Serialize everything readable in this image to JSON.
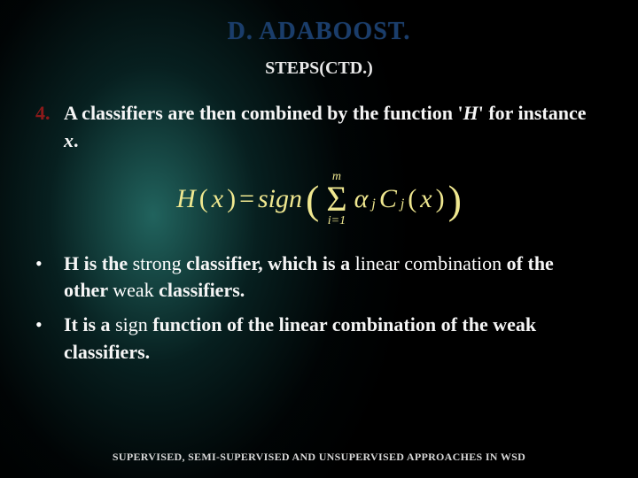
{
  "slide": {
    "title": "D. ADABOOST.",
    "subtitle": "STEPS(CTD.)",
    "item4": {
      "marker": "4.",
      "pre": "A classifiers are then combined by the function '",
      "H": "H",
      "mid": "' for instance ",
      "x": "x",
      "post": "."
    },
    "formula": {
      "lhs": "H",
      "lparen1": "(",
      "xvar": "x",
      "rparen1": ")",
      "eq": " = ",
      "sign": "sign",
      "big_l": "(",
      "sum_top": "m",
      "sigma": "Σ",
      "sum_bot": "i=1",
      "alpha": "α",
      "sub_j1": "j",
      "C": "C",
      "sub_j2": "j",
      "lparen2": "(",
      "xvar2": "x",
      "rparen2": ")",
      "big_r": ")"
    },
    "bullet1": {
      "marker": "•",
      "t1": "H is the ",
      "strong": "strong",
      "t2": " classifier, which is a ",
      "linear": "linear combination",
      "t3": " of the other ",
      "weak": "weak",
      "t4": " classifiers."
    },
    "bullet2": {
      "marker": "•",
      "t1": "It is a ",
      "sign": "sign",
      "t2": " function of the linear combination of the weak classifiers."
    },
    "footer": "SUPERVISED, SEMI-SUPERVISED AND UNSUPERVISED APPROACHES IN WSD"
  },
  "style": {
    "title_color": "#1a3d6b",
    "marker_color": "#8b1a1a",
    "formula_color": "#f0e890",
    "text_color": "#f5f5f5",
    "bg_base": "#000000"
  }
}
